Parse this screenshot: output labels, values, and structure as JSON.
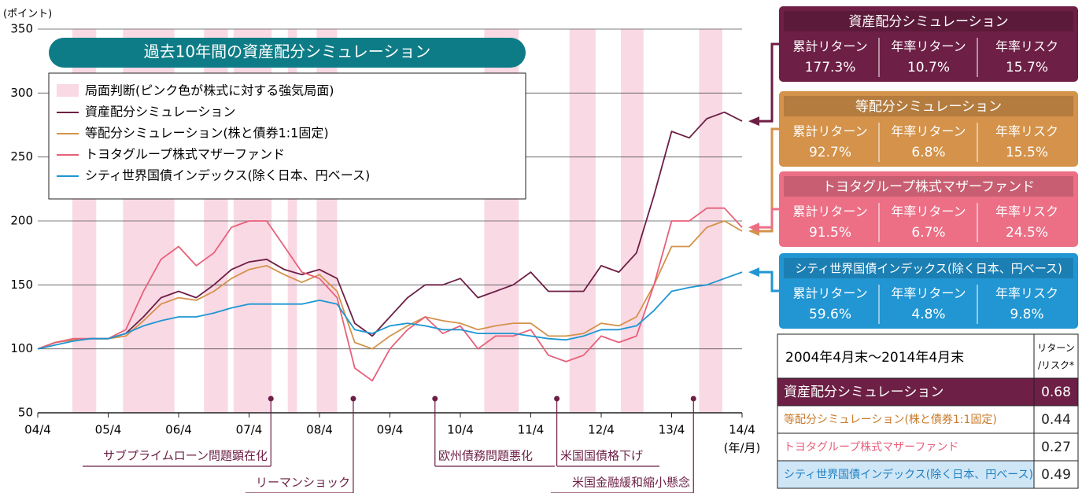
{
  "chart_data": {
    "type": "line",
    "title": "過去10年間の資産配分シミュレーション",
    "y_label": "(ポイント)",
    "x_unit": "(年/月)",
    "x": [
      2004.25,
      2004.5,
      2004.75,
      2005.0,
      2005.25,
      2005.5,
      2005.75,
      2006.0,
      2006.25,
      2006.5,
      2006.75,
      2007.0,
      2007.25,
      2007.5,
      2007.75,
      2008.0,
      2008.25,
      2008.5,
      2008.75,
      2009.0,
      2009.25,
      2009.5,
      2009.75,
      2010.0,
      2010.25,
      2010.5,
      2010.75,
      2011.0,
      2011.25,
      2011.5,
      2011.75,
      2012.0,
      2012.25,
      2012.5,
      2012.75,
      2013.0,
      2013.25,
      2013.5,
      2013.75,
      2014.0,
      2014.25
    ],
    "xlim": [
      2004.25,
      2014.25
    ],
    "xticks": [
      {
        "value": 2004.25,
        "label": "04/4"
      },
      {
        "value": 2005.25,
        "label": "05/4"
      },
      {
        "value": 2006.25,
        "label": "06/4"
      },
      {
        "value": 2007.25,
        "label": "07/4"
      },
      {
        "value": 2008.25,
        "label": "08/4"
      },
      {
        "value": 2009.25,
        "label": "09/4"
      },
      {
        "value": 2010.25,
        "label": "10/4"
      },
      {
        "value": 2011.25,
        "label": "11/4"
      },
      {
        "value": 2012.25,
        "label": "12/4"
      },
      {
        "value": 2013.25,
        "label": "13/4"
      },
      {
        "value": 2014.25,
        "label": "14/4"
      }
    ],
    "ylim": [
      50,
      350
    ],
    "yticks": [
      50,
      100,
      150,
      200,
      250,
      300,
      350
    ],
    "grid": true,
    "band_label": "局面判断(ピンク色が株式に対する強気局面)",
    "band_color": "#f9d9e4",
    "bands": [
      [
        2004.74,
        2005.08
      ],
      [
        2005.46,
        2006.19
      ],
      [
        2006.61,
        2006.95
      ],
      [
        2007.03,
        2007.57
      ],
      [
        2007.8,
        2007.93
      ],
      [
        2008.21,
        2008.5
      ],
      [
        2010.59,
        2011.08
      ],
      [
        2011.8,
        2012.17
      ],
      [
        2012.53,
        2012.85
      ],
      [
        2013.64,
        2013.97
      ]
    ],
    "series": [
      {
        "name": "資産配分シミュレーション",
        "color": "#6d1f45",
        "values": [
          100,
          105,
          107,
          108,
          108,
          112,
          125,
          140,
          145,
          140,
          150,
          162,
          168,
          170,
          162,
          158,
          162,
          155,
          120,
          110,
          125,
          140,
          150,
          150,
          155,
          140,
          145,
          150,
          160,
          145,
          145,
          145,
          165,
          160,
          175,
          220,
          270,
          265,
          280,
          285,
          278
        ]
      },
      {
        "name": "等配分シミュレーション(株と債券1:1固定)",
        "color": "#d4924a",
        "values": [
          100,
          105,
          107,
          108,
          108,
          110,
          122,
          135,
          140,
          138,
          145,
          155,
          162,
          165,
          158,
          152,
          158,
          145,
          105,
          100,
          110,
          118,
          125,
          122,
          120,
          115,
          118,
          120,
          120,
          110,
          110,
          112,
          120,
          118,
          125,
          150,
          180,
          180,
          195,
          200,
          192
        ]
      },
      {
        "name": "トヨタグループ株式マザーファンド",
        "color": "#e8607a",
        "values": [
          100,
          105,
          108,
          108,
          108,
          115,
          145,
          170,
          180,
          165,
          175,
          195,
          200,
          200,
          180,
          160,
          155,
          140,
          85,
          75,
          100,
          115,
          125,
          112,
          118,
          100,
          110,
          110,
          115,
          95,
          90,
          95,
          110,
          105,
          110,
          150,
          200,
          200,
          210,
          210,
          195
        ]
      },
      {
        "name": "シティ世界国債インデックス(除く日本、円ベース)",
        "color": "#1e96d2",
        "values": [
          100,
          103,
          106,
          108,
          108,
          112,
          118,
          122,
          125,
          125,
          128,
          132,
          135,
          135,
          135,
          135,
          138,
          135,
          115,
          112,
          118,
          120,
          118,
          115,
          115,
          112,
          112,
          112,
          110,
          108,
          107,
          110,
          115,
          115,
          118,
          130,
          145,
          148,
          150,
          155,
          160
        ]
      }
    ],
    "events": [
      {
        "label": "サブプライムローン問題顕在化",
        "x": 2007.56
      },
      {
        "label": "リーマンショック",
        "x": 2008.73
      },
      {
        "label": "欧州債務問題悪化",
        "x": 2009.89
      },
      {
        "label": "米国国債格下げ",
        "x": 2011.62
      },
      {
        "label": "米国金融緩和縮小懸念",
        "x": 2013.56
      }
    ],
    "panels": [
      {
        "title": "資産配分シミュレーション",
        "color": "#6d1f45",
        "headers": [
          "累計リターン",
          "年率リターン",
          "年率リスク"
        ],
        "values": [
          "177.3%",
          "10.7%",
          "15.7%"
        ]
      },
      {
        "title": "等配分シミュレーション",
        "color": "#d4924a",
        "headers": [
          "累計リターン",
          "年率リターン",
          "年率リスク"
        ],
        "values": [
          "92.7%",
          "6.8%",
          "15.5%"
        ]
      },
      {
        "title": "トヨタグループ株式マザーファンド",
        "color": "#ec6f86",
        "headers": [
          "累計リターン",
          "年率リターン",
          "年率リスク"
        ],
        "values": [
          "91.5%",
          "6.7%",
          "24.5%"
        ]
      },
      {
        "title": "シティ世界国債インデックス(除く日本、円ベース)",
        "color": "#2196d3",
        "headers": [
          "累計リターン",
          "年率リターン",
          "年率リスク"
        ],
        "values": [
          "59.6%",
          "4.8%",
          "9.8%"
        ]
      }
    ],
    "table": {
      "header": [
        "2004年4月末～2014年4月末",
        [
          "リターン",
          "/リスク*"
        ]
      ],
      "rows": [
        {
          "name": "資産配分シミュレーション",
          "value": 0.68,
          "bg": "#6d1f45",
          "fg": "#ffffff"
        },
        {
          "name": "等配分シミュレーション(株と債券1:1固定)",
          "value": 0.44,
          "bg": "#ffffff",
          "fg": "#c97a2a"
        },
        {
          "name": "トヨタグループ株式マザーファンド",
          "value": 0.27,
          "bg": "#ffffff",
          "fg": "#e8607a"
        },
        {
          "name": "シティ世界国債インデックス(除く日本、円ベース)",
          "value": 0.49,
          "bg": "#cfe6f7",
          "fg": "#1e7fc0"
        }
      ]
    }
  }
}
